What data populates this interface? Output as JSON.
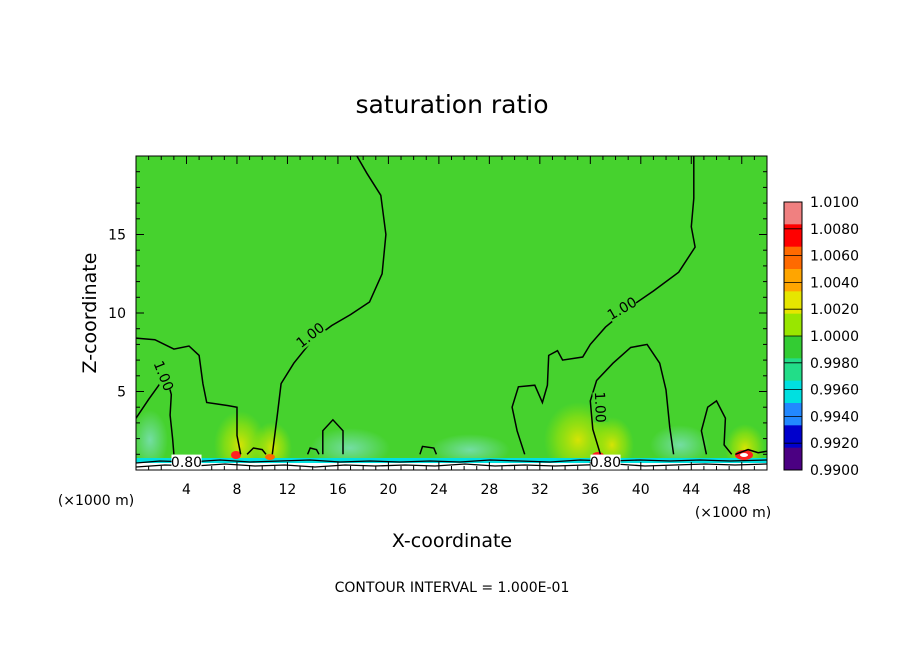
{
  "chart_data": {
    "type": "heatmap",
    "title": "saturation ratio",
    "xlabel": "X-coordinate",
    "ylabel": "Z-coordinate",
    "x_unit": "(×1000 m)",
    "x_unit_right": "(×1000 m)",
    "xlim": [
      0,
      50
    ],
    "ylim": [
      0,
      20
    ],
    "x_ticks": [
      4,
      8,
      12,
      16,
      20,
      24,
      28,
      32,
      36,
      40,
      44,
      48
    ],
    "y_ticks": [
      5,
      10,
      15
    ],
    "footer": "CONTOUR INTERVAL = 1.000E-01",
    "colorbar": {
      "levels": [
        "1.0100",
        "1.0080",
        "1.0060",
        "1.0040",
        "1.0020",
        "1.0000",
        "0.9980",
        "0.9960",
        "0.9940",
        "0.9920",
        "0.9900"
      ],
      "colors": [
        "#f08080",
        "#ff0000",
        "#ff6a00",
        "#ffa500",
        "#e6e600",
        "#99e600",
        "#33cc33",
        "#22dd88",
        "#00e0e0",
        "#2288ff",
        "#0000cc",
        "#4b0082"
      ]
    },
    "contour_labels": [
      {
        "text": "1.00",
        "x": 13.8,
        "z": 8.6,
        "angle": -38
      },
      {
        "text": "1.00",
        "x": 2.2,
        "z": 6.0,
        "angle": 68
      },
      {
        "text": "1.00",
        "x": 38.5,
        "z": 10.3,
        "angle": -30
      },
      {
        "text": "1.00",
        "x": 36.8,
        "z": 4.0,
        "angle": 88
      },
      {
        "text": "0.80",
        "x": 4.0,
        "z": 0.5,
        "angle": 0
      },
      {
        "text": "0.80",
        "x": 37.2,
        "z": 0.5,
        "angle": 0
      }
    ],
    "contours_1_00": [
      [
        [
          0,
          8.4
        ],
        [
          1.5,
          8.3
        ],
        [
          3,
          7.7
        ],
        [
          4.2,
          7.9
        ],
        [
          5,
          7.3
        ],
        [
          5.3,
          5.5
        ],
        [
          5.6,
          4.3
        ],
        [
          6.5,
          4.2
        ],
        [
          7.3,
          4.1
        ],
        [
          8,
          4.0
        ],
        [
          8.0,
          2.2
        ],
        [
          8.3,
          1.0
        ]
      ],
      [
        [
          0,
          3.3
        ],
        [
          1.0,
          4.5
        ],
        [
          1.9,
          5.5
        ],
        [
          2.4,
          6.0
        ],
        [
          2.8,
          4.8
        ],
        [
          2.7,
          3.5
        ],
        [
          2.9,
          2.0
        ],
        [
          3.0,
          1.0
        ]
      ],
      [
        [
          10.8,
          1.0
        ],
        [
          11.2,
          3.5
        ],
        [
          11.5,
          5.5
        ],
        [
          12.5,
          6.8
        ],
        [
          14,
          8.3
        ],
        [
          15.5,
          9.2
        ],
        [
          17,
          9.9
        ],
        [
          18.5,
          10.7
        ],
        [
          19.5,
          12.5
        ],
        [
          19.8,
          15.0
        ],
        [
          19.4,
          17.5
        ],
        [
          18.3,
          18.9
        ],
        [
          17.5,
          20
        ]
      ],
      [
        [
          14.8,
          1.0
        ],
        [
          14.8,
          2.5
        ],
        [
          15.6,
          3.2
        ],
        [
          16.4,
          2.5
        ],
        [
          16.4,
          1.0
        ]
      ],
      [
        [
          8.8,
          1.0
        ],
        [
          9.3,
          1.4
        ],
        [
          10.0,
          1.3
        ],
        [
          10.3,
          1.0
        ]
      ],
      [
        [
          13.6,
          1.0
        ],
        [
          13.8,
          1.4
        ],
        [
          14.3,
          1.3
        ],
        [
          14.5,
          1.0
        ]
      ],
      [
        [
          22.5,
          1.0
        ],
        [
          22.7,
          1.5
        ],
        [
          23.6,
          1.4
        ],
        [
          23.8,
          1.0
        ]
      ],
      [
        [
          30.8,
          1.0
        ],
        [
          30.2,
          2.5
        ],
        [
          29.8,
          4.0
        ],
        [
          30.3,
          5.3
        ],
        [
          31.6,
          5.4
        ],
        [
          32.2,
          4.3
        ],
        [
          32.6,
          5.4
        ],
        [
          32.7,
          7.3
        ],
        [
          33.4,
          7.6
        ],
        [
          33.8,
          7.0
        ],
        [
          35.4,
          7.2
        ],
        [
          36.0,
          8.0
        ],
        [
          37.2,
          9.1
        ],
        [
          39.0,
          10.3
        ],
        [
          41.0,
          11.4
        ],
        [
          43.0,
          12.6
        ],
        [
          44.3,
          14.2
        ],
        [
          44.0,
          15.5
        ],
        [
          44.2,
          17.3
        ],
        [
          44.2,
          19.5
        ],
        [
          44.2,
          20
        ]
      ],
      [
        [
          36.8,
          1.0
        ],
        [
          36.2,
          2.6
        ],
        [
          36.0,
          4.4
        ],
        [
          36.5,
          5.7
        ],
        [
          37.8,
          6.8
        ],
        [
          39.2,
          7.8
        ],
        [
          40.5,
          8.0
        ],
        [
          41.5,
          6.8
        ],
        [
          42.0,
          5.1
        ],
        [
          42.3,
          2.7
        ],
        [
          42.6,
          1.0
        ]
      ],
      [
        [
          45.2,
          1.0
        ],
        [
          44.8,
          2.5
        ],
        [
          45.3,
          4.0
        ],
        [
          46.0,
          4.4
        ],
        [
          46.7,
          3.3
        ],
        [
          46.6,
          1.6
        ],
        [
          47.2,
          1.0
        ]
      ],
      [
        [
          47.5,
          1.0
        ],
        [
          48.5,
          1.3
        ],
        [
          49.3,
          1.1
        ],
        [
          50,
          1.2
        ]
      ]
    ]
  }
}
